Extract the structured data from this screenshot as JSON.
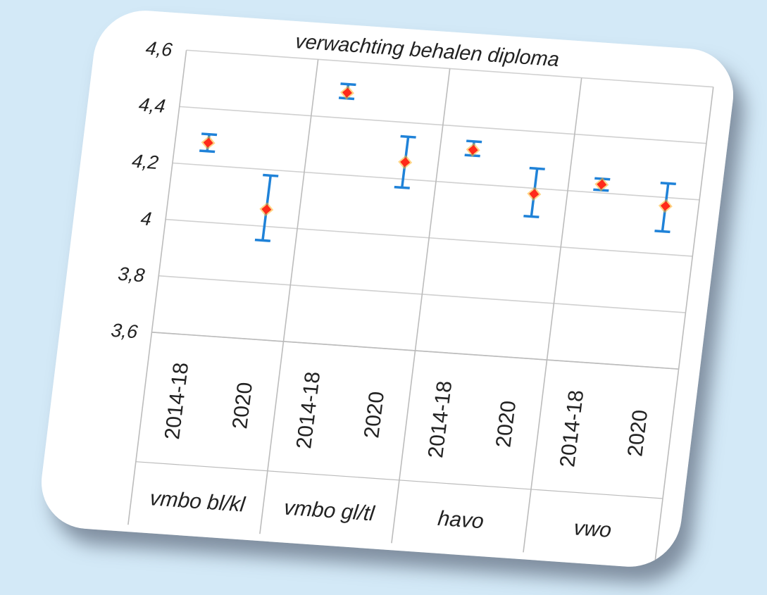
{
  "chart_data": {
    "type": "scatter",
    "title": "verwachting behalen diploma",
    "ylim": [
      3.6,
      4.6
    ],
    "yticks": [
      "3,6",
      "3,8",
      "4",
      "4,2",
      "4,4",
      "4,6"
    ],
    "ytick_values": [
      3.6,
      3.8,
      4.0,
      4.2,
      4.4,
      4.6
    ],
    "grid": true,
    "groups": [
      {
        "name": "vmbo bl/kl",
        "periods": [
          {
            "label": "2014-18",
            "value": 4.28,
            "low": 4.25,
            "high": 4.31
          },
          {
            "label": "2020",
            "value": 4.06,
            "low": 3.95,
            "high": 4.18
          }
        ]
      },
      {
        "name": "vmbo gl/tl",
        "periods": [
          {
            "label": "2014-18",
            "value": 4.49,
            "low": 4.47,
            "high": 4.52
          },
          {
            "label": "2020",
            "value": 4.26,
            "low": 4.17,
            "high": 4.35
          }
        ]
      },
      {
        "name": "havo",
        "periods": [
          {
            "label": "2014-18",
            "value": 4.32,
            "low": 4.3,
            "high": 4.35
          },
          {
            "label": "2020",
            "value": 4.18,
            "low": 4.1,
            "high": 4.27
          }
        ]
      },
      {
        "name": "vwo",
        "periods": [
          {
            "label": "2014-18",
            "value": 4.23,
            "low": 4.21,
            "high": 4.25
          },
          {
            "label": "2020",
            "value": 4.17,
            "low": 4.08,
            "high": 4.25
          }
        ]
      }
    ],
    "colors": {
      "marker": "#ff2a1a",
      "marker_glow": "#ffb020",
      "error_bar": "#1f82d8",
      "grid": "#d0d0d0",
      "axis": "#bcbcbc"
    }
  }
}
